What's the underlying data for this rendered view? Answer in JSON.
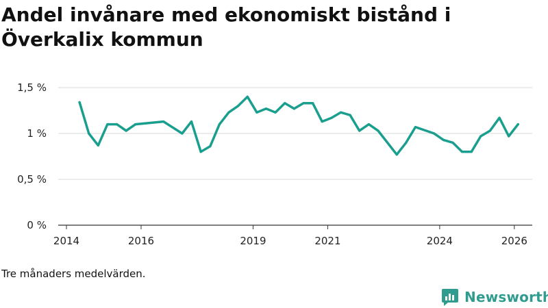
{
  "header": {
    "title": "Andel invånare med ekonomiskt bistånd i Överkalix kommun"
  },
  "footer": {
    "note": "Tre månaders medelvärden.",
    "brand": "Newsworthy"
  },
  "colors": {
    "line": "#1a9e8e",
    "grid": "#d9d9d9",
    "axis": "#333333",
    "brand": "#2f9c8f"
  },
  "chart_data": {
    "type": "line",
    "title": "Andel invånare med ekonomiskt bistånd i Överkalix kommun",
    "xlabel": "",
    "ylabel": "",
    "xlim": [
      2014,
      2026.7
    ],
    "ylim": [
      0,
      1.5
    ],
    "grid": true,
    "yticks": [
      {
        "value": 0,
        "label": "0 %"
      },
      {
        "value": 0.5,
        "label": "0,5 %"
      },
      {
        "value": 1.0,
        "label": "1 %"
      },
      {
        "value": 1.5,
        "label": "1,5 %"
      }
    ],
    "xticks": [
      {
        "value": 2014,
        "label": "2014"
      },
      {
        "value": 2016,
        "label": "2016"
      },
      {
        "value": 2019,
        "label": "2019"
      },
      {
        "value": 2021,
        "label": "2021"
      },
      {
        "value": 2024,
        "label": "2024"
      },
      {
        "value": 2026,
        "label": "2026"
      }
    ],
    "series": [
      {
        "name": "Andel invånare med ekonomiskt bistånd",
        "x": [
          2014.35,
          2014.6,
          2014.85,
          2015.1,
          2015.35,
          2015.6,
          2015.85,
          2016.6,
          2017.1,
          2017.35,
          2017.6,
          2017.85,
          2018.1,
          2018.35,
          2018.6,
          2018.85,
          2019.1,
          2019.35,
          2019.6,
          2019.85,
          2020.1,
          2020.35,
          2020.6,
          2020.85,
          2021.1,
          2021.35,
          2021.6,
          2021.85,
          2022.1,
          2022.35,
          2022.85,
          2023.1,
          2023.35,
          2023.85,
          2024.1,
          2024.35,
          2024.6,
          2024.85,
          2025.1,
          2025.35,
          2025.6,
          2025.85,
          2026.1
        ],
        "values": [
          1.34,
          1.0,
          0.87,
          1.1,
          1.1,
          1.03,
          1.1,
          1.13,
          1.0,
          1.13,
          0.8,
          0.86,
          1.1,
          1.23,
          1.3,
          1.4,
          1.23,
          1.27,
          1.23,
          1.33,
          1.27,
          1.33,
          1.33,
          1.13,
          1.17,
          1.23,
          1.2,
          1.03,
          1.1,
          1.03,
          0.77,
          0.9,
          1.07,
          1.0,
          0.93,
          0.9,
          0.8,
          0.8,
          0.97,
          1.03,
          1.17,
          0.97,
          1.1
        ]
      }
    ]
  }
}
